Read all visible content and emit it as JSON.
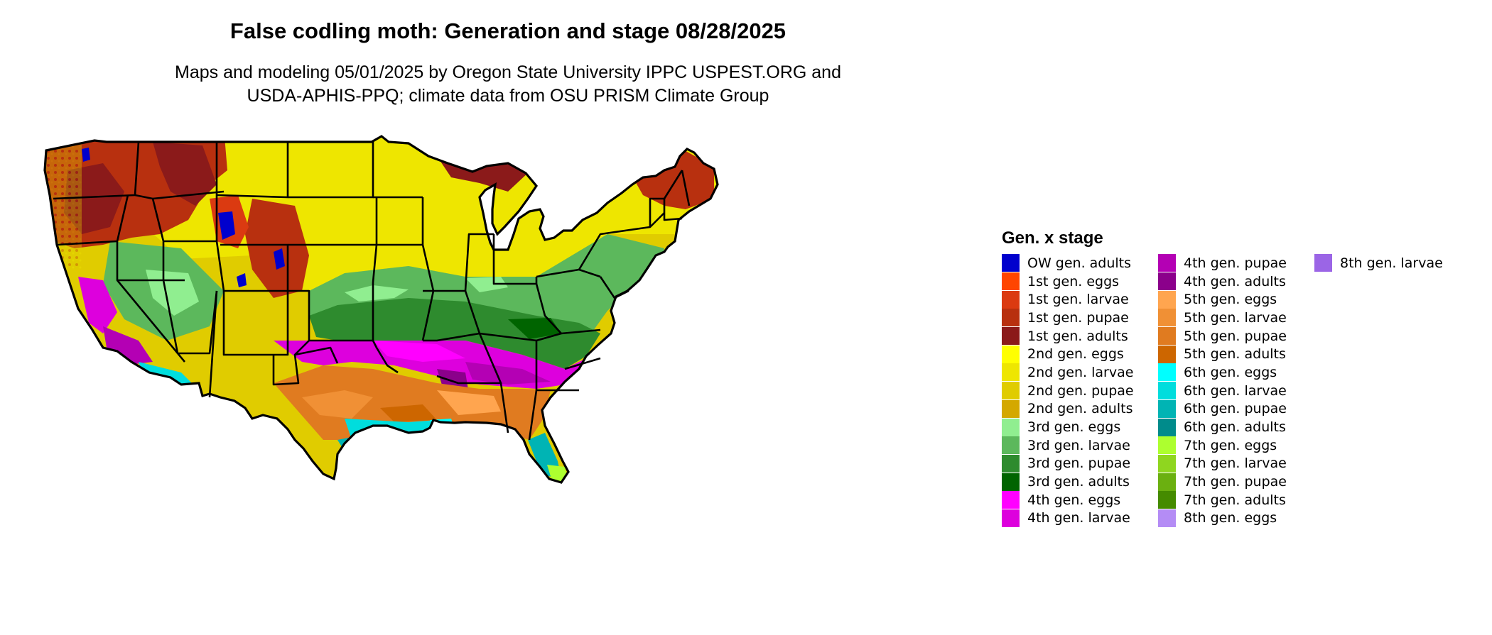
{
  "header": {
    "title": "False codling moth: Generation and stage 08/28/2025",
    "subtitle_line1": "Maps and modeling 05/01/2025 by Oregon State University IPPC USPEST.ORG and",
    "subtitle_line2": "USDA-APHIS-PPQ; climate data from OSU PRISM Climate Group"
  },
  "legend": {
    "title": "Gen. x stage",
    "columns": [
      [
        {
          "label": "OW gen. adults",
          "color": "#0000cd"
        },
        {
          "label": "1st gen. eggs",
          "color": "#ff4500"
        },
        {
          "label": "1st gen. larvae",
          "color": "#db3a11"
        },
        {
          "label": "1st gen. pupae",
          "color": "#b8300f"
        },
        {
          "label": "1st gen. adults",
          "color": "#8b1a1a"
        },
        {
          "label": "2nd gen. eggs",
          "color": "#ffff00"
        },
        {
          "label": "2nd gen. larvae",
          "color": "#eee600"
        },
        {
          "label": "2nd gen. pupae",
          "color": "#e0cc00"
        },
        {
          "label": "2nd gen. adults",
          "color": "#d4a800"
        },
        {
          "label": "3rd gen. eggs",
          "color": "#90ee90"
        },
        {
          "label": "3rd gen. larvae",
          "color": "#5cb85c"
        },
        {
          "label": "3rd gen. pupae",
          "color": "#2e8b2e"
        },
        {
          "label": "3rd gen. adults",
          "color": "#006400"
        },
        {
          "label": "4th gen. eggs",
          "color": "#ff00ff"
        },
        {
          "label": "4th gen. larvae",
          "color": "#dd00dd"
        }
      ],
      [
        {
          "label": "4th gen. pupae",
          "color": "#b400b4"
        },
        {
          "label": "4th gen. adults",
          "color": "#8b008b"
        },
        {
          "label": "5th gen. eggs",
          "color": "#ffa54f"
        },
        {
          "label": "5th gen. larvae",
          "color": "#f09035"
        },
        {
          "label": "5th gen. pupae",
          "color": "#e07b20"
        },
        {
          "label": "5th gen. adults",
          "color": "#cd6600"
        },
        {
          "label": "6th gen. eggs",
          "color": "#00ffff"
        },
        {
          "label": "6th gen. larvae",
          "color": "#00dddd"
        },
        {
          "label": "6th gen. pupae",
          "color": "#00b4b4"
        },
        {
          "label": "6th gen. adults",
          "color": "#008b8b"
        },
        {
          "label": "7th gen. eggs",
          "color": "#adff2f"
        },
        {
          "label": "7th gen. larvae",
          "color": "#8fd61f"
        },
        {
          "label": "7th gen. pupae",
          "color": "#6bb010"
        },
        {
          "label": "7th gen. adults",
          "color": "#458b00"
        },
        {
          "label": "8th gen. eggs",
          "color": "#b48cf5"
        }
      ],
      [
        {
          "label": "8th gen. larvae",
          "color": "#9b65e6"
        }
      ]
    ]
  }
}
